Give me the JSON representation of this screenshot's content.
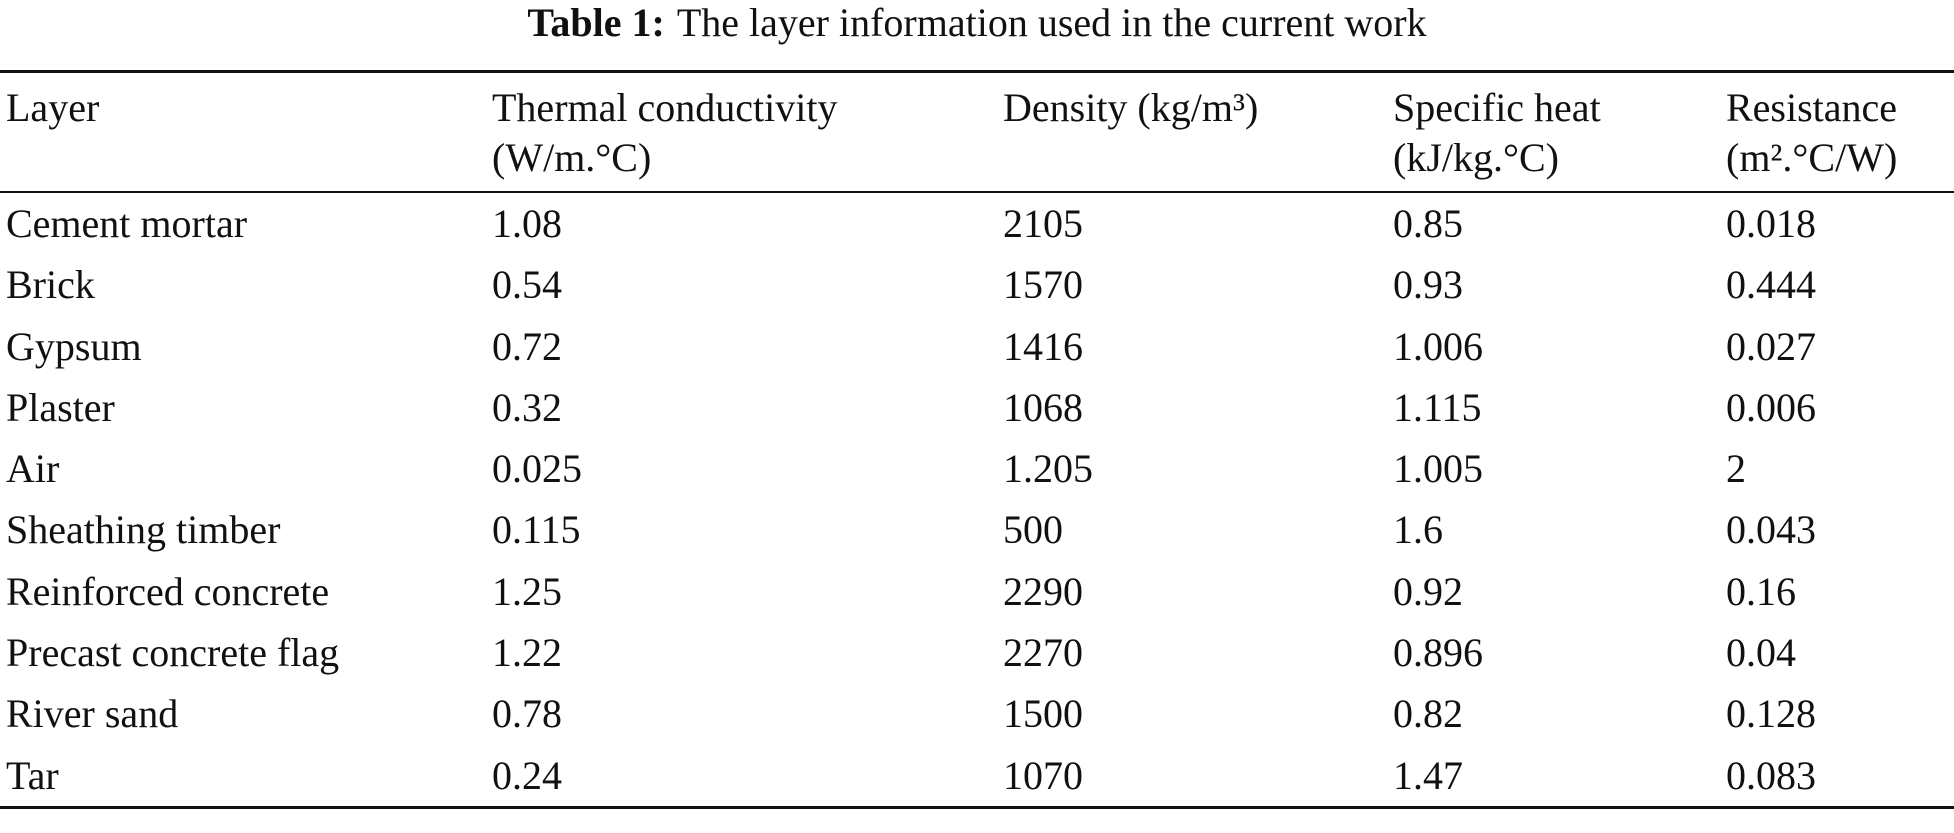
{
  "caption": {
    "label": "Table 1:",
    "text": "The layer information used in the current work"
  },
  "table": {
    "headers": [
      [
        "Layer"
      ],
      [
        "Thermal conductivity",
        "(W/m.°C)"
      ],
      [
        "Density (kg/m³)"
      ],
      [
        "Specific heat",
        "(kJ/kg.°C)"
      ],
      [
        "Resistance",
        "(m².°C/W)"
      ]
    ],
    "rows": [
      [
        "Cement mortar",
        "1.08",
        "2105",
        "0.85",
        "0.018"
      ],
      [
        "Brick",
        "0.54",
        "1570",
        "0.93",
        "0.444"
      ],
      [
        "Gypsum",
        "0.72",
        "1416",
        "1.006",
        "0.027"
      ],
      [
        "Plaster",
        "0.32",
        "1068",
        "1.115",
        "0.006"
      ],
      [
        "Air",
        "0.025",
        "1.205",
        "1.005",
        "2"
      ],
      [
        "Sheathing timber",
        "0.115",
        "500",
        "1.6",
        "0.043"
      ],
      [
        "Reinforced concrete",
        "1.25",
        "2290",
        "0.92",
        "0.16"
      ],
      [
        "Precast concrete flag",
        "1.22",
        "2270",
        "0.896",
        "0.04"
      ],
      [
        "River sand",
        "0.78",
        "1500",
        "0.82",
        "0.128"
      ],
      [
        "Tar",
        "0.24",
        "1070",
        "1.47",
        "0.083"
      ]
    ]
  }
}
